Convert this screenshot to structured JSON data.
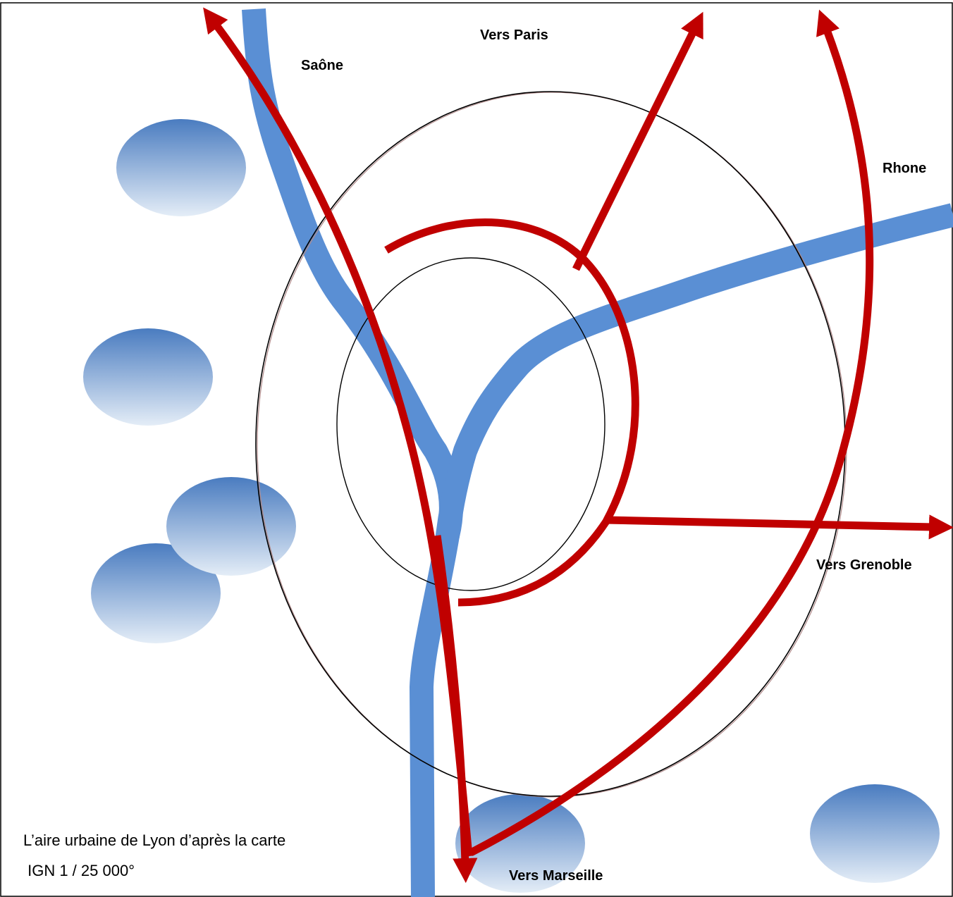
{
  "labels": {
    "paris": "Vers Paris",
    "saone": "Saône",
    "rhone": "Rhone",
    "grenoble": "Vers Grenoble",
    "marseille": "Vers Marseille"
  },
  "caption": {
    "line1": "L’aire urbaine de Lyon d’après la carte",
    "line2": " IGN 1 / 25 000°"
  },
  "colors": {
    "river": "#5a8fd4",
    "route": "#c00000",
    "ring": "#000000",
    "city_top": "#4a7cc0",
    "city_bottom": "#e4edf7",
    "frame": "#000000"
  }
}
